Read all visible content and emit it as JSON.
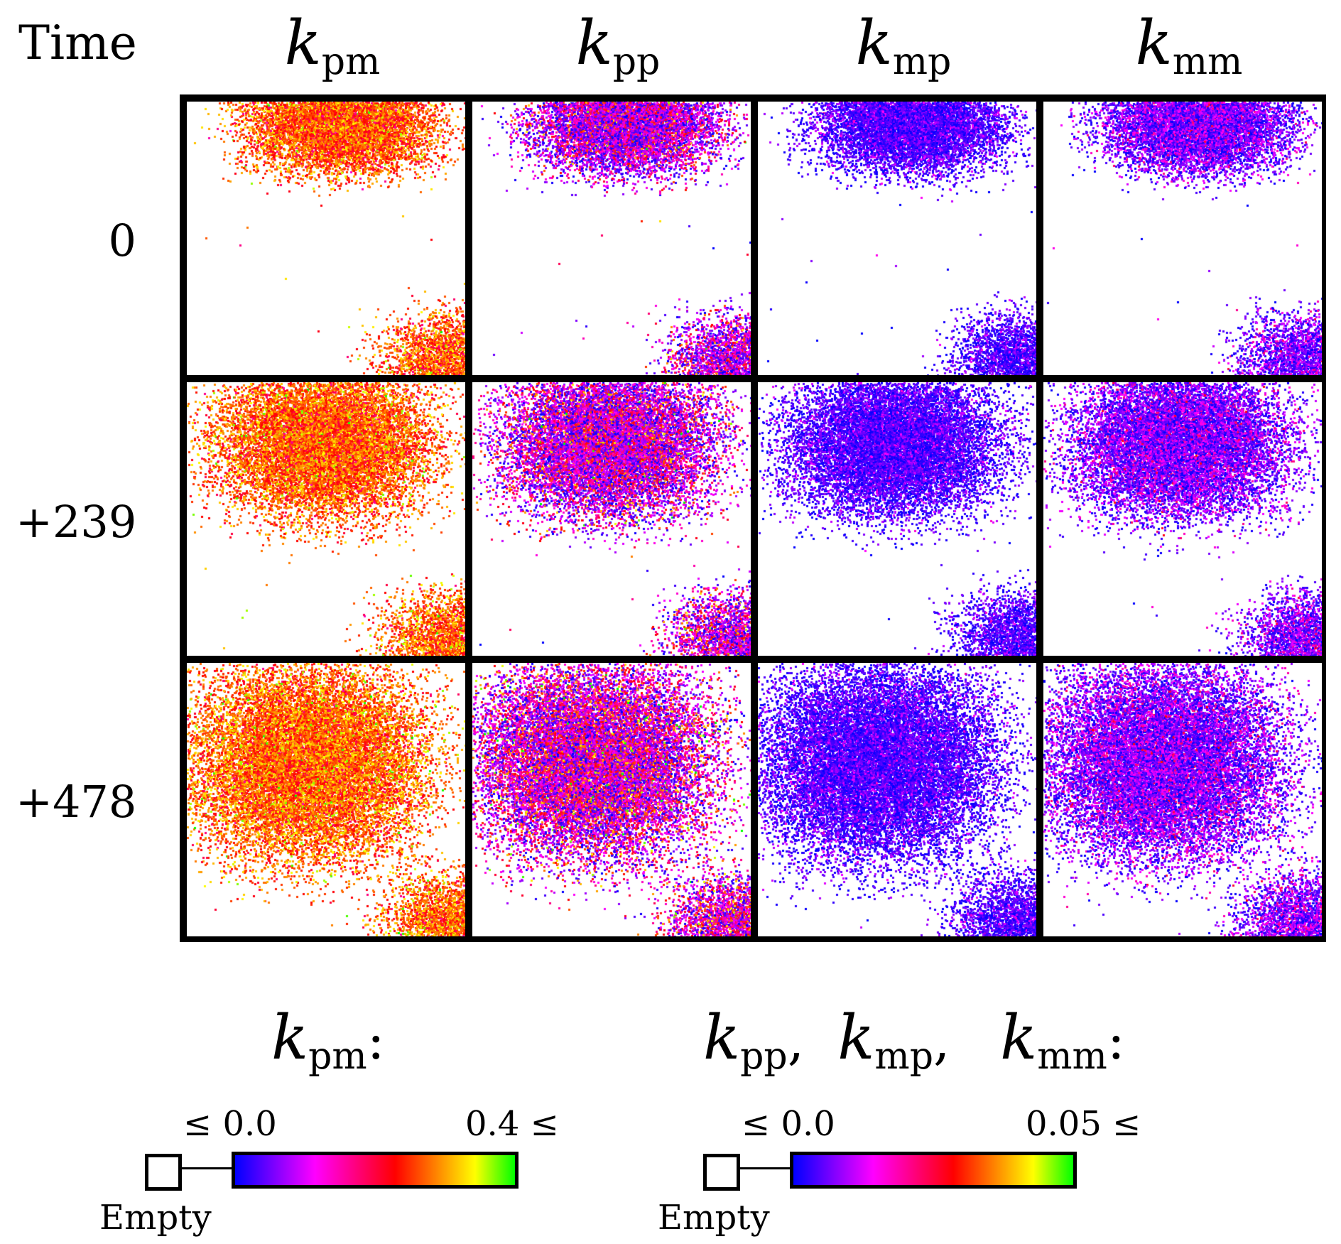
{
  "header": {
    "time_label": "Time",
    "columns": [
      {
        "base": "k",
        "sub": "pm",
        "map": "pm"
      },
      {
        "base": "k",
        "sub": "pp",
        "map": "pp"
      },
      {
        "base": "k",
        "sub": "mp",
        "map": "mp"
      },
      {
        "base": "k",
        "sub": "mm",
        "map": "mm"
      }
    ]
  },
  "rows": [
    {
      "label": "0",
      "spread": 0.0
    },
    {
      "label": "+239",
      "spread": 0.5
    },
    {
      "label": "+478",
      "spread": 1.0
    }
  ],
  "legends": [
    {
      "title_parts": [
        {
          "base": "k",
          "sub": "pm",
          "suffix": ":"
        }
      ],
      "min_label": "≤ 0.0",
      "max_label": "0.4 ≤",
      "empty_label": "Empty"
    },
    {
      "title_parts": [
        {
          "base": "k",
          "sub": "pp",
          "suffix": ","
        },
        {
          "base": "k",
          "sub": "mp",
          "suffix": ","
        },
        {
          "base": "k",
          "sub": "mm",
          "suffix": ":"
        }
      ],
      "min_label": "≤ 0.0",
      "max_label": "0.05 ≤",
      "empty_label": "Empty"
    }
  ],
  "colormap": [
    "#0000ff",
    "#8000ff",
    "#ff00ff",
    "#ff0080",
    "#ff0000",
    "#ff8000",
    "#ffff00",
    "#00ff00"
  ]
}
